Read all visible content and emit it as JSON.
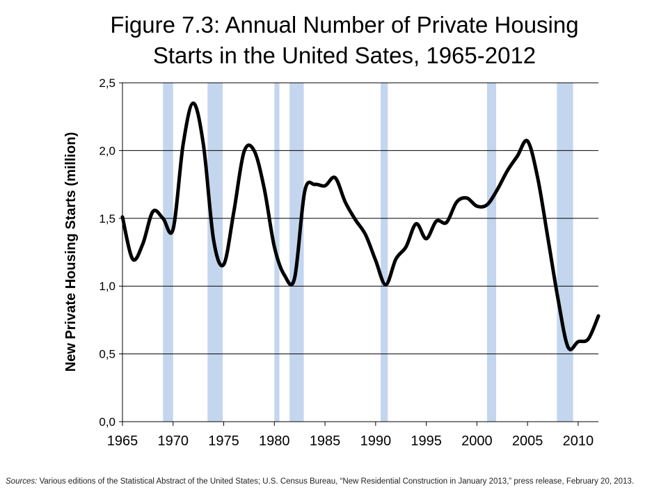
{
  "title_line1": "Figure 7.3: Annual Number of Private Housing",
  "title_line2": "Starts in the United Sates, 1965-2012",
  "sources_lead": "Sources:",
  "sources_text": " Various editions of the Statistical Abstract of the United States; U.S. Census Bureau, “New Residential Construction in January 2013,” press release, February 20, 2013.",
  "chart_data": {
    "type": "line",
    "title": "Figure 7.3: Annual Number of Private Housing Starts in the United Sates, 1965-2012",
    "xlabel": "",
    "ylabel": "New Private Housing Starts (million)",
    "xlim": [
      1965,
      2012
    ],
    "ylim": [
      0,
      2.5
    ],
    "x_ticks": [
      1965,
      1970,
      1975,
      1980,
      1985,
      1990,
      1995,
      2000,
      2005,
      2010
    ],
    "x_tick_labels": [
      "1965",
      "1970",
      "1975",
      "1980",
      "1985",
      "1990",
      "1995",
      "2000",
      "2005",
      "2010"
    ],
    "y_ticks": [
      0,
      0.5,
      1,
      1.5,
      2,
      2.5
    ],
    "y_tick_labels": [
      "0,0",
      "0,5",
      "1,0",
      "1,5",
      "2,0",
      "2,5"
    ],
    "grid": "horizontal",
    "series": [
      {
        "color": "#000000",
        "x": [
          1965,
          1966,
          1967,
          1968,
          1969,
          1970,
          1971,
          1972,
          1973,
          1974,
          1975,
          1976,
          1977,
          1978,
          1979,
          1980,
          1981,
          1982,
          1983,
          1984,
          1985,
          1986,
          1987,
          1988,
          1989,
          1990,
          1991,
          1992,
          1993,
          1994,
          1995,
          1996,
          1997,
          1998,
          1999,
          2000,
          2001,
          2002,
          2003,
          2004,
          2005,
          2006,
          2007,
          2008,
          2009,
          2010,
          2011,
          2012
        ],
        "values": [
          1.51,
          1.2,
          1.31,
          1.55,
          1.5,
          1.42,
          2.05,
          2.35,
          2.04,
          1.34,
          1.16,
          1.55,
          1.99,
          2.0,
          1.72,
          1.29,
          1.08,
          1.06,
          1.7,
          1.75,
          1.74,
          1.8,
          1.62,
          1.49,
          1.38,
          1.19,
          1.01,
          1.2,
          1.29,
          1.46,
          1.35,
          1.48,
          1.47,
          1.62,
          1.65,
          1.59,
          1.6,
          1.71,
          1.85,
          1.96,
          2.07,
          1.8,
          1.36,
          0.91,
          0.55,
          0.59,
          0.61,
          0.78
        ]
      }
    ],
    "shaded_periods": [
      [
        1969,
        1970
      ],
      [
        1973.4,
        1974.9
      ],
      [
        1980,
        1980.5
      ],
      [
        1981.5,
        1982.9
      ],
      [
        1990.5,
        1991.2
      ],
      [
        2001,
        2001.9
      ],
      [
        2007.9,
        2009.5
      ]
    ],
    "shade_color": "#c3d6ee"
  }
}
